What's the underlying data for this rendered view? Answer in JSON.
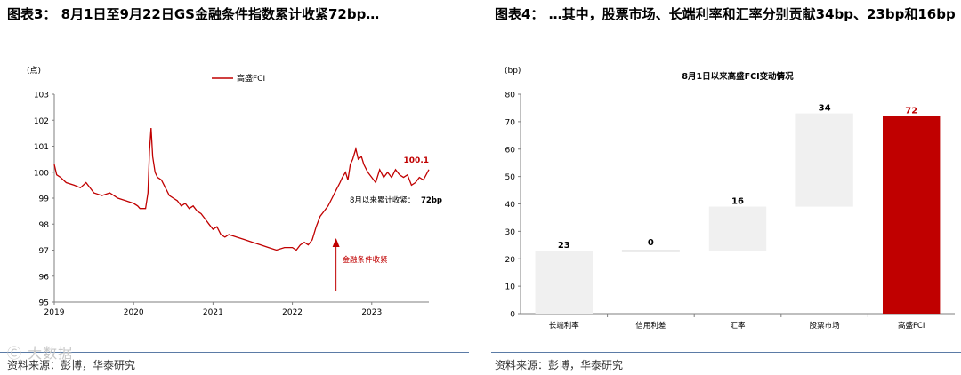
{
  "left_panel": {
    "title": "图表3： 8月1日至9月22日GS金融条件指数累计收紧72bp…",
    "source": "资料来源：彭博，华泰研究",
    "watermark": "Ⓒ 大数据",
    "annotation_tighten": "金融条件收紧",
    "annotation_cum": "8月以来累计收紧：",
    "annotation_cum_value": "72bp"
  },
  "right_panel": {
    "title": "图表4： …其中，股票市场、长端利率和汇率分别贡献34bp、23bp和16bp",
    "source": "资料来源：彭博，华泰研究"
  },
  "colors": {
    "line": "#c00000",
    "bar_grey": "#f0f0f0",
    "bar_red": "#c00000",
    "rule": "#5b7ba6"
  },
  "chart_data": [
    {
      "type": "line",
      "title": "",
      "ylabel": "(点)",
      "ylim": [
        95,
        103
      ],
      "yticks": [
        95,
        96,
        97,
        98,
        99,
        100,
        101,
        102,
        103
      ],
      "xticks": [
        "2019",
        "2020",
        "2021",
        "2022",
        "2023"
      ],
      "xlim": [
        2019.0,
        2023.72
      ],
      "legend": "高盛FCI",
      "last_label": "100.1",
      "series": [
        {
          "name": "高盛FCI",
          "x": [
            2019.0,
            2019.03,
            2019.08,
            2019.15,
            2019.25,
            2019.33,
            2019.4,
            2019.5,
            2019.6,
            2019.7,
            2019.8,
            2019.9,
            2020.0,
            2020.05,
            2020.08,
            2020.12,
            2020.15,
            2020.18,
            2020.2,
            2020.22,
            2020.24,
            2020.27,
            2020.3,
            2020.35,
            2020.4,
            2020.45,
            2020.5,
            2020.55,
            2020.6,
            2020.65,
            2020.7,
            2020.75,
            2020.8,
            2020.85,
            2020.9,
            2020.95,
            2021.0,
            2021.05,
            2021.1,
            2021.15,
            2021.2,
            2021.3,
            2021.4,
            2021.5,
            2021.6,
            2021.7,
            2021.8,
            2021.9,
            2022.0,
            2022.05,
            2022.1,
            2022.15,
            2022.2,
            2022.25,
            2022.3,
            2022.35,
            2022.4,
            2022.45,
            2022.5,
            2022.55,
            2022.6,
            2022.63,
            2022.67,
            2022.7,
            2022.73,
            2022.76,
            2022.8,
            2022.83,
            2022.87,
            2022.9,
            2022.95,
            2023.0,
            2023.05,
            2023.1,
            2023.15,
            2023.2,
            2023.25,
            2023.3,
            2023.35,
            2023.4,
            2023.45,
            2023.5,
            2023.55,
            2023.6,
            2023.65,
            2023.72
          ],
          "values": [
            100.3,
            99.9,
            99.8,
            99.6,
            99.5,
            99.4,
            99.6,
            99.2,
            99.1,
            99.2,
            99.0,
            98.9,
            98.8,
            98.7,
            98.6,
            98.6,
            98.6,
            99.2,
            100.8,
            101.7,
            100.6,
            100.0,
            99.8,
            99.7,
            99.4,
            99.1,
            99.0,
            98.9,
            98.7,
            98.8,
            98.6,
            98.7,
            98.5,
            98.4,
            98.2,
            98.0,
            97.8,
            97.9,
            97.6,
            97.5,
            97.6,
            97.5,
            97.4,
            97.3,
            97.2,
            97.1,
            97.0,
            97.1,
            97.1,
            97.0,
            97.2,
            97.3,
            97.2,
            97.4,
            97.9,
            98.3,
            98.5,
            98.7,
            99.0,
            99.3,
            99.6,
            99.8,
            100.0,
            99.7,
            100.3,
            100.5,
            100.9,
            100.5,
            100.6,
            100.3,
            100.0,
            99.8,
            99.6,
            100.1,
            99.8,
            100.0,
            99.8,
            100.1,
            99.9,
            99.8,
            99.9,
            99.5,
            99.6,
            99.8,
            99.7,
            100.1
          ]
        }
      ]
    },
    {
      "type": "bar",
      "subtype": "waterfall",
      "title": "8月1日以来高盛FCI变动情况",
      "ylabel": "(bp)",
      "ylim": [
        0,
        80
      ],
      "yticks": [
        0,
        10,
        20,
        30,
        40,
        50,
        60,
        70,
        80
      ],
      "categories": [
        "长端利率",
        "信用利差",
        "汇率",
        "股票市场",
        "高盛FCI"
      ],
      "values": [
        23,
        0,
        16,
        34,
        72
      ],
      "bases": [
        0,
        23,
        23,
        39,
        0
      ],
      "labels": [
        "23",
        "0",
        "16",
        "34",
        "72"
      ]
    }
  ]
}
